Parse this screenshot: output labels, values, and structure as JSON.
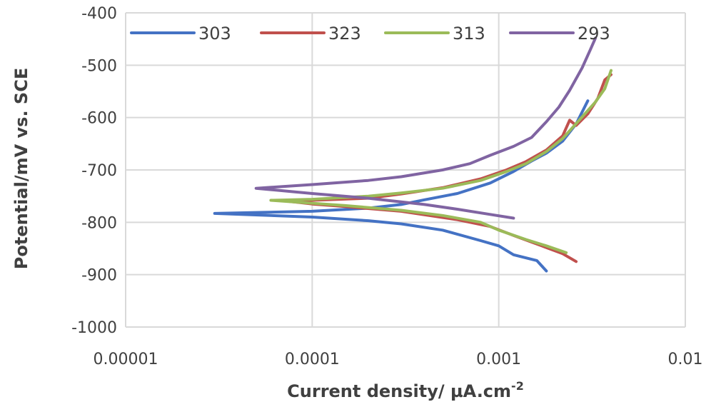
{
  "chart_data": {
    "type": "line",
    "title": "",
    "xlabel": "Current density/ µA.cm",
    "xlabel_superscript": "-2",
    "ylabel": "Potential/mV vs. SCE",
    "xscale": "log",
    "xlim": [
      1e-05,
      0.01
    ],
    "ylim": [
      -1000,
      -400
    ],
    "x_tick_labels": [
      "0.00001",
      "0.0001",
      "0.001",
      "0.01"
    ],
    "y_tick_labels": [
      "-400",
      "-500",
      "-600",
      "-700",
      "-800",
      "-900",
      "-1000"
    ],
    "grid": true,
    "legend_position": "top",
    "series": [
      {
        "name": "303",
        "color": "#4472C4",
        "points": [
          [
            0.0018,
            -893
          ],
          [
            0.0016,
            -873
          ],
          [
            0.0012,
            -862
          ],
          [
            0.001,
            -845
          ],
          [
            0.0008,
            -835
          ],
          [
            0.0005,
            -815
          ],
          [
            0.0003,
            -803
          ],
          [
            0.0002,
            -797
          ],
          [
            0.0001,
            -790
          ],
          [
            3e-05,
            -783
          ],
          [
            0.0001,
            -779
          ],
          [
            0.0002,
            -773
          ],
          [
            0.0003,
            -766
          ],
          [
            0.0004,
            -757
          ],
          [
            0.0006,
            -745
          ],
          [
            0.0009,
            -725
          ],
          [
            0.0012,
            -703
          ],
          [
            0.0015,
            -683
          ],
          [
            0.0018,
            -668
          ],
          [
            0.0022,
            -645
          ],
          [
            0.0026,
            -612
          ],
          [
            0.003,
            -568
          ]
        ]
      },
      {
        "name": "323",
        "color": "#C0504D",
        "points": [
          [
            0.0026,
            -875
          ],
          [
            0.0022,
            -860
          ],
          [
            0.0017,
            -845
          ],
          [
            0.0012,
            -825
          ],
          [
            0.0009,
            -808
          ],
          [
            0.0006,
            -795
          ],
          [
            0.0003,
            -779
          ],
          [
            0.00015,
            -770
          ],
          [
            0.0001,
            -765
          ],
          [
            7.5e-05,
            -760
          ],
          [
            0.0001,
            -758
          ],
          [
            0.0002,
            -754
          ],
          [
            0.0003,
            -746
          ],
          [
            0.0005,
            -734
          ],
          [
            0.0008,
            -717
          ],
          [
            0.0011,
            -700
          ],
          [
            0.0014,
            -684
          ],
          [
            0.0018,
            -662
          ],
          [
            0.0022,
            -635
          ],
          [
            0.0024,
            -605
          ],
          [
            0.0026,
            -615
          ],
          [
            0.003,
            -593
          ],
          [
            0.0034,
            -563
          ],
          [
            0.0037,
            -528
          ],
          [
            0.004,
            -518
          ]
        ]
      },
      {
        "name": "313",
        "color": "#9BBB59",
        "points": [
          [
            0.0023,
            -858
          ],
          [
            0.0018,
            -845
          ],
          [
            0.0014,
            -833
          ],
          [
            0.001,
            -815
          ],
          [
            0.0008,
            -800
          ],
          [
            0.0005,
            -787
          ],
          [
            0.0003,
            -777
          ],
          [
            0.00015,
            -768
          ],
          [
            6e-05,
            -758
          ],
          [
            0.0001,
            -756
          ],
          [
            0.0002,
            -750
          ],
          [
            0.0003,
            -744
          ],
          [
            0.0005,
            -735
          ],
          [
            0.0008,
            -720
          ],
          [
            0.0011,
            -703
          ],
          [
            0.0014,
            -688
          ],
          [
            0.0018,
            -665
          ],
          [
            0.0022,
            -640
          ],
          [
            0.0027,
            -605
          ],
          [
            0.0033,
            -570
          ],
          [
            0.0037,
            -545
          ],
          [
            0.004,
            -510
          ]
        ]
      },
      {
        "name": "293",
        "color": "#8064A2",
        "points": [
          [
            0.0012,
            -792
          ],
          [
            0.0009,
            -785
          ],
          [
            0.0006,
            -775
          ],
          [
            0.0004,
            -766
          ],
          [
            0.0002,
            -754
          ],
          [
            0.0001,
            -745
          ],
          [
            5e-05,
            -735
          ],
          [
            0.0001,
            -728
          ],
          [
            0.0002,
            -720
          ],
          [
            0.0003,
            -713
          ],
          [
            0.0005,
            -700
          ],
          [
            0.0007,
            -688
          ],
          [
            0.0009,
            -672
          ],
          [
            0.0012,
            -655
          ],
          [
            0.0015,
            -638
          ],
          [
            0.0018,
            -608
          ],
          [
            0.0021,
            -580
          ],
          [
            0.0024,
            -548
          ],
          [
            0.0028,
            -505
          ],
          [
            0.0031,
            -470
          ],
          [
            0.0033,
            -448
          ]
        ]
      }
    ]
  }
}
